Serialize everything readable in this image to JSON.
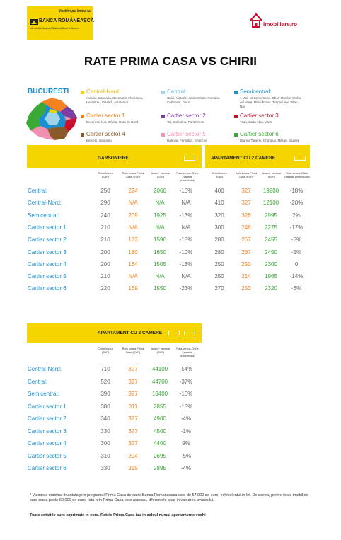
{
  "header": {
    "brd_slogan": "Vorbim pe limba ta.",
    "brd_name": "BANCA ROMÂNEASCĂ",
    "brd_sub": "Membră a Grupului National Bank of Greece",
    "imobiliare": "imobiliare.ro"
  },
  "title": "RATE PRIMA CASA VS CHIRII",
  "legend": {
    "city": "BUCURESTI",
    "zones": [
      {
        "name": "Central-Nord:",
        "desc": "Aviatiei, Baneasa, Dorobanti, Floreasca, Herastrau, Kiseleff, Aviatorilor",
        "color": "#f6d400"
      },
      {
        "name": "Central:",
        "desc": "Unirii, Victoriei, Universitate, Romana Cotroceni, Dacia",
        "color": "#9fd3e8"
      },
      {
        "name": "Semicentral:",
        "desc": "1 Mai, 13 Septembrie, Obor, Mosilor, Stefan cel Mare, Mihai Bravu, Timpuri Noi, Vitan Nou",
        "color": "#1a8fd0"
      },
      {
        "name": "Cartier sector 1",
        "desc": "Bucurestii Noi, Grivita, Gara de Nord",
        "color": "#f58220"
      },
      {
        "name": "Cartier sector 2",
        "desc": "Tei, Colentina, Pantelimon",
        "color": "#7b3fa0"
      },
      {
        "name": "Cartier sector 3",
        "desc": "Titan, Balta Alba, Vitan",
        "color": "#c8102e"
      },
      {
        "name": "Cartier sector 4",
        "desc": "Berceni, Giurgiului",
        "color": "#8b5a2b"
      },
      {
        "name": "Cartier sector 5",
        "desc": "Rahova, Ferentari, Ghencea",
        "color": "#f08fb0"
      },
      {
        "name": "Cartier sector 6",
        "desc": "Drumul Taberei, Crangasi, Militari, Giulesti",
        "color": "#3aa935"
      }
    ]
  },
  "columns": {
    "chirie": "Chirie lunara (EUR)",
    "rata": "Rata lunara Prima Casa (EUR)",
    "avans": "Avans* necesar (EUR)",
    "diff": "Rata versus Chirie (variatie procentuala)"
  },
  "garsoniere": {
    "title": "GARSONIERE",
    "rows": [
      {
        "label": "Central:",
        "chirie": "250",
        "rata": "224",
        "avans": "2060",
        "diff": "-10%"
      },
      {
        "label": "Central-Nord:",
        "chirie": "290",
        "rata": "N/A",
        "avans": "N/A",
        "diff": "N/A"
      },
      {
        "label": "Semicentral:",
        "chirie": "240",
        "rata": "209",
        "avans": "1925",
        "diff": "-13%"
      },
      {
        "label": "Cartier sector 1",
        "chirie": "210",
        "rata": "N/A",
        "avans": "N/A",
        "diff": "N/A"
      },
      {
        "label": "Cartier sector 2",
        "chirie": "210",
        "rata": "173",
        "avans": "1590",
        "diff": "-18%"
      },
      {
        "label": "Cartier sector 3",
        "chirie": "200",
        "rata": "180",
        "avans": "1650",
        "diff": "-10%"
      },
      {
        "label": "Cartier sector 4",
        "chirie": "200",
        "rata": "164",
        "avans": "1505",
        "diff": "-18%"
      },
      {
        "label": "Cartier sector 5",
        "chirie": "210",
        "rata": "N/A",
        "avans": "N/A",
        "diff": "N/A"
      },
      {
        "label": "Cartier sector 6",
        "chirie": "220",
        "rata": "169",
        "avans": "1550",
        "diff": "-23%"
      }
    ]
  },
  "apt2": {
    "title": "APARTAMENT CU 2 CAMERE",
    "rows": [
      {
        "chirie": "400",
        "rata": "327",
        "avans": "19200",
        "diff": "-18%"
      },
      {
        "chirie": "410",
        "rata": "327",
        "avans": "12100",
        "diff": "-20%"
      },
      {
        "chirie": "320",
        "rata": "326",
        "avans": "2995",
        "diff": "2%"
      },
      {
        "chirie": "300",
        "rata": "248",
        "avans": "2275",
        "diff": "-17%"
      },
      {
        "chirie": "280",
        "rata": "267",
        "avans": "2455",
        "diff": "-5%"
      },
      {
        "chirie": "280",
        "rata": "267",
        "avans": "2450",
        "diff": "-5%"
      },
      {
        "chirie": "250",
        "rata": "250",
        "avans": "2300",
        "diff": "0"
      },
      {
        "chirie": "250",
        "rata": "214",
        "avans": "1965",
        "diff": "-14%"
      },
      {
        "chirie": "270",
        "rata": "253",
        "avans": "2320",
        "diff": "-6%"
      }
    ]
  },
  "apt3": {
    "title": "APARTAMENT CU 3 CAMERE",
    "rows": [
      {
        "label": "Central-Nord:",
        "chirie": "710",
        "rata": "327",
        "avans": "44100",
        "diff": "-54%"
      },
      {
        "label": "Central:",
        "chirie": "520",
        "rata": "327",
        "avans": "44700",
        "diff": "-37%"
      },
      {
        "label": "Semicentral:",
        "chirie": "390",
        "rata": "327",
        "avans": "18400",
        "diff": "-16%"
      },
      {
        "label": "Cartier sector 1",
        "chirie": "380",
        "rata": "311",
        "avans": "2855",
        "diff": "-18%"
      },
      {
        "label": "Cartier sector 2",
        "chirie": "340",
        "rata": "327",
        "avans": "4900",
        "diff": "-4%"
      },
      {
        "label": "Cartier sector 3",
        "chirie": "330",
        "rata": "327",
        "avans": "4500",
        "diff": "-1%"
      },
      {
        "label": "Cartier sector 4",
        "chirie": "300",
        "rata": "327",
        "avans": "4400",
        "diff": "9%"
      },
      {
        "label": "Cartier sector 5",
        "chirie": "310",
        "rata": "294",
        "avans": "2695",
        "diff": "-5%"
      },
      {
        "label": "Cartier sector 6",
        "chirie": "330",
        "rata": "315",
        "avans": "2895",
        "diff": "-4%"
      }
    ]
  },
  "footnote": "* Valoarea maxima finantata prin programul Prima Casa de catre Banca Romaneasca este de 57.000 de euro, echivalentul in lei. De aceea, pentru toate imobilele care costa peste 60.000  de euro, rata prin Prima Casa este aceeasi, diferentele apar in valoarea avansului.",
  "footer": "Toate cotatiile sunt exprimate in euro. Ratele Prima Casa iau in calcul numai apartamente vechi"
}
